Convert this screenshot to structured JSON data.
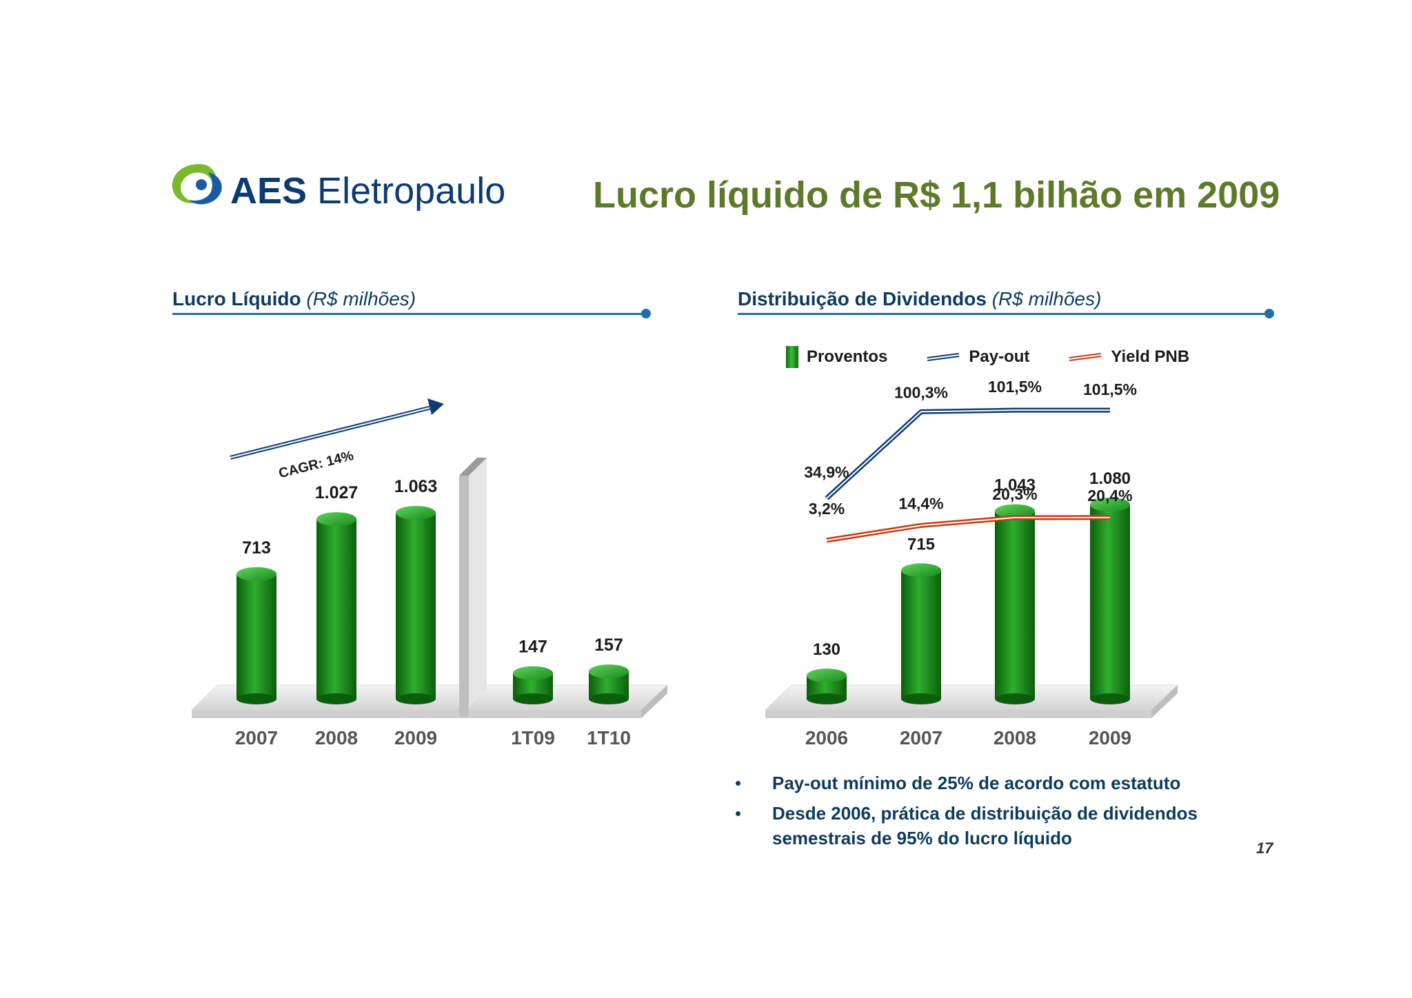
{
  "brand": {
    "name_bold": "AES",
    "name_rest": " Eletropaulo"
  },
  "page": {
    "title": "Lucro líquido de R$ 1,1 bilhão em 2009",
    "number": "17"
  },
  "left_chart_header": {
    "title": "Lucro Líquido",
    "unit": "(R$ milhões)"
  },
  "right_chart_header": {
    "title": "Distribuição de Dividendos",
    "unit": "(R$ milhões)"
  },
  "legend": {
    "bars": "Proventos",
    "payout": "Pay-out",
    "yield": "Yield PNB"
  },
  "bullets": [
    "Pay-out mínimo de 25% de acordo com estatuto",
    "Desde 2006, prática de distribuição de dividendos semestrais de 95% do lucro líquido"
  ],
  "colors": {
    "bar": "#1a8a1a",
    "payout": "#0e3a72",
    "yield": "#c43a12",
    "title": "#5c7a2a",
    "rule": "#1f6fa8"
  },
  "chart_data": [
    {
      "type": "bar",
      "title": "Lucro Líquido (R$ milhões)",
      "categories": [
        "2007",
        "2008",
        "2009",
        "1T09",
        "1T10"
      ],
      "values": [
        713,
        1027,
        1063,
        147,
        157
      ],
      "value_labels": [
        "713",
        "1.027",
        "1.063",
        "147",
        "157"
      ],
      "annotation": "CAGR: 14%"
    },
    {
      "type": "bar",
      "title": "Distribuição de Dividendos (R$ milhões)",
      "categories": [
        "2006",
        "2007",
        "2008",
        "2009"
      ],
      "series": [
        {
          "name": "Proventos",
          "type": "bar",
          "values": [
            130,
            715,
            1043,
            1080
          ],
          "labels": [
            "130",
            "715",
            "1.043",
            "1.080"
          ]
        },
        {
          "name": "Pay-out",
          "type": "line",
          "values": [
            34.9,
            100.3,
            101.5,
            101.5
          ],
          "labels": [
            "34,9%",
            "100,3%",
            "101,5%",
            "101,5%"
          ]
        },
        {
          "name": "Yield PNB",
          "type": "line",
          "values": [
            3.2,
            14.4,
            20.3,
            20.4
          ],
          "labels": [
            "3,2%",
            "14,4%",
            "20,3%",
            "20,4%"
          ]
        }
      ],
      "legend_position": "top"
    }
  ]
}
